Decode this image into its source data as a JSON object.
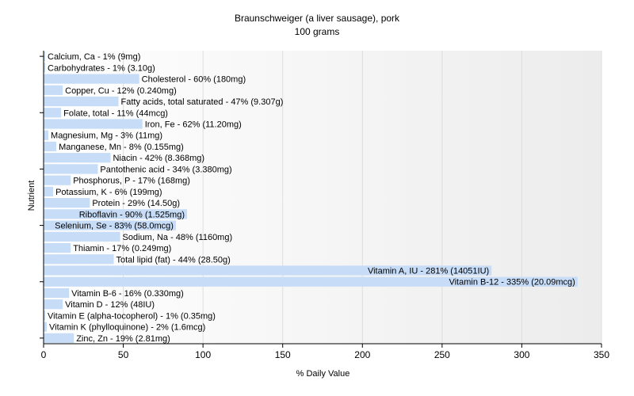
{
  "chart_data": {
    "type": "bar",
    "orientation": "horizontal",
    "title": "Braunschweiger (a liver sausage), pork",
    "subtitle": "100 grams",
    "xlabel": "% Daily Value",
    "ylabel": "Nutrient",
    "xlim": [
      0,
      350
    ],
    "xticks": [
      0,
      50,
      100,
      150,
      200,
      250,
      300,
      350
    ],
    "grid": true,
    "bar_color": "#c6dcf7",
    "categories": [
      "Calcium, Ca",
      "Carbohydrates",
      "Cholesterol",
      "Copper, Cu",
      "Fatty acids, total saturated",
      "Folate, total",
      "Iron, Fe",
      "Magnesium, Mg",
      "Manganese, Mn",
      "Niacin",
      "Pantothenic acid",
      "Phosphorus, P",
      "Potassium, K",
      "Protein",
      "Riboflavin",
      "Selenium, Se",
      "Sodium, Na",
      "Thiamin",
      "Total lipid (fat)",
      "Vitamin A, IU",
      "Vitamin B-12",
      "Vitamin B-6",
      "Vitamin D",
      "Vitamin E (alpha-tocopherol)",
      "Vitamin K (phylloquinone)",
      "Zinc, Zn"
    ],
    "values": [
      1,
      1,
      60,
      12,
      47,
      11,
      62,
      3,
      8,
      42,
      34,
      17,
      6,
      29,
      90,
      83,
      48,
      17,
      44,
      281,
      335,
      16,
      12,
      1,
      2,
      19
    ],
    "labels": [
      "Calcium, Ca - 1% (9mg)",
      "Carbohydrates - 1% (3.10g)",
      "Cholesterol - 60% (180mg)",
      "Copper, Cu - 12% (0.240mg)",
      "Fatty acids, total saturated - 47% (9.307g)",
      "Folate, total - 11% (44mcg)",
      "Iron, Fe - 62% (11.20mg)",
      "Magnesium, Mg - 3% (11mg)",
      "Manganese, Mn - 8% (0.155mg)",
      "Niacin - 42% (8.368mg)",
      "Pantothenic acid - 34% (3.380mg)",
      "Phosphorus, P - 17% (168mg)",
      "Potassium, K - 6% (199mg)",
      "Protein - 29% (14.50g)",
      "Riboflavin - 90% (1.525mg)",
      "Selenium, Se - 83% (58.0mcg)",
      "Sodium, Na - 48% (1160mg)",
      "Thiamin - 17% (0.249mg)",
      "Total lipid (fat) - 44% (28.50g)",
      "Vitamin A, IU - 281% (14051IU)",
      "Vitamin B-12 - 335% (20.09mcg)",
      "Vitamin B-6 - 16% (0.330mg)",
      "Vitamin D - 12% (48IU)",
      "Vitamin E (alpha-tocopherol) - 1% (0.35mg)",
      "Vitamin K (phylloquinone) - 2% (1.6mcg)",
      "Zinc, Zn - 19% (2.81mg)"
    ]
  }
}
